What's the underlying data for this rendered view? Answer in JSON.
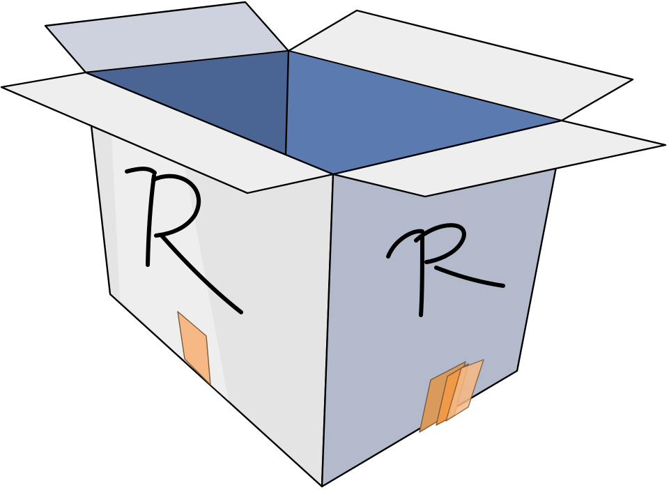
{
  "scene": {
    "subject": "open-cardboard-box",
    "colors": {
      "background": "#ffffff",
      "outline": "#000000",
      "interior_dark": "#4a6494",
      "interior_light": "#5b7bb0",
      "left_face": "#e4e4e4",
      "left_face_highlight": "#f1f1f1",
      "right_face": "#b3bacb",
      "flap_light": "#eeeeee",
      "flap_shadow": "#cdd2de",
      "tape_light": "#f6b985",
      "tape_dark": "#f09a48",
      "tape_mid": "#d99a5c"
    },
    "markings": {
      "left_face_letter": "R",
      "right_face_letter": "R"
    }
  }
}
